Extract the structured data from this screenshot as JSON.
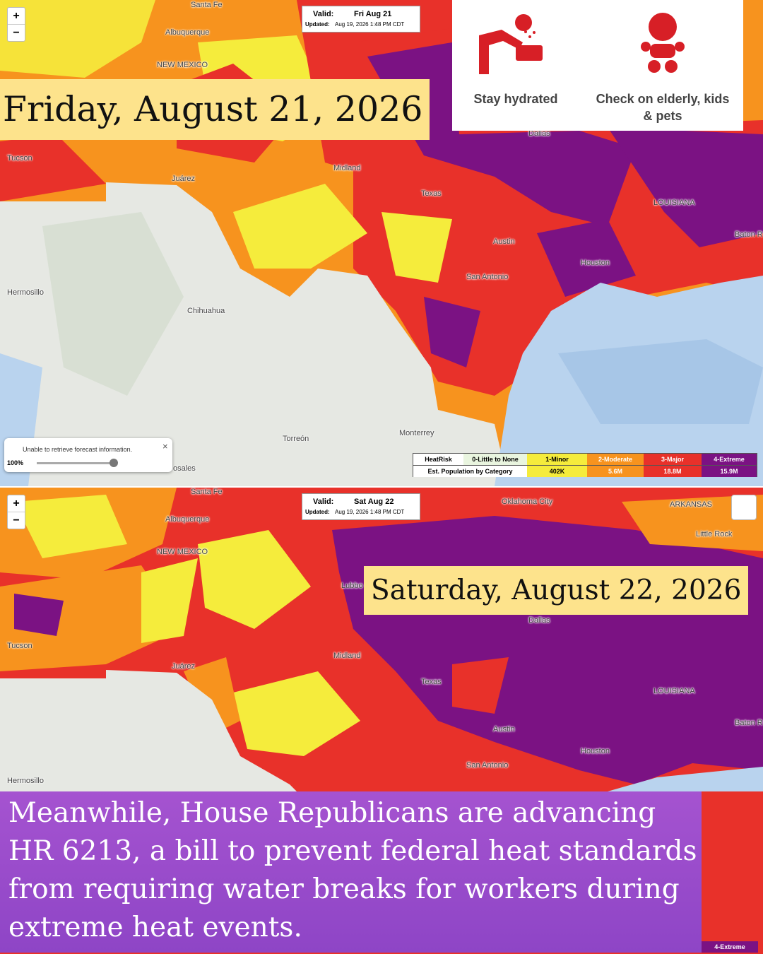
{
  "maps": [
    {
      "zoom_in": "+",
      "zoom_out": "−",
      "valid_label": "Valid:",
      "valid_date": "Fri Aug 21",
      "updated_label": "Updated:",
      "updated_time": "Aug 19, 2026 1:48 PM CDT",
      "date_banner": "Friday, August 21, 2026",
      "places": [
        "Santa Fe",
        "Albuquerque",
        "NEW MEXICO",
        "Tucson",
        "Juárez",
        "Midland",
        "Dallas",
        "Texas",
        "LOUISIANA",
        "Austin",
        "Houston",
        "San Antonio",
        "Baton R",
        "Hermosillo",
        "Chihuahua",
        "Torreón",
        "Monterrey",
        "osales"
      ]
    },
    {
      "zoom_in": "+",
      "zoom_out": "−",
      "valid_label": "Valid:",
      "valid_date": "Sat Aug 22",
      "updated_label": "Updated:",
      "updated_time": "Aug 19, 2026 1:48 PM CDT",
      "date_banner": "Saturday, August 22, 2026",
      "places": [
        "Santa Fe",
        "Albuquerque",
        "NEW MEXICO",
        "Oklahoma City",
        "ARKANSAS",
        "Little Rock",
        "Lubbo",
        "Dallas",
        "Tucson",
        "Juárez",
        "Midland",
        "Texas",
        "LOUISIANA",
        "Austin",
        "Houston",
        "Baton R",
        "San Antonio",
        "Hermosillo"
      ]
    }
  ],
  "tips": [
    "Stay hydrated",
    "Check on elderly, kids & pets"
  ],
  "popup": {
    "message": "Unable to retrieve forecast information.",
    "close": "×",
    "opacity": "100%"
  },
  "legend": {
    "header": [
      "HeatRisk",
      "0-Little to None",
      "1-Minor",
      "2-Moderate",
      "3-Major",
      "4-Extreme"
    ],
    "population_label": "Est. Population by Category",
    "population": [
      "402K",
      "5.6M",
      "18.8M",
      "15.9M"
    ]
  },
  "caption": "Meanwhile, House Republicans are advancing HR 6213, a bill to prevent federal heat standards from requiring water breaks for workers during extreme heat events.",
  "bottom_legend_fragment": "4-Extreme"
}
